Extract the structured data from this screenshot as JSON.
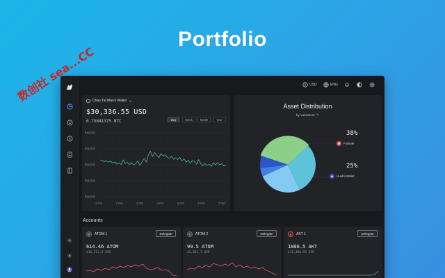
{
  "hero": {
    "title": "Portfolio"
  },
  "watermark": {
    "text": "数创社 sea...CC"
  },
  "topbar": {
    "currency": "USD",
    "language": "ENG"
  },
  "wallet": {
    "name": "Chan Tai Man's Wallet",
    "balance_usd": "$30,336.55 USD",
    "balance_btc": "0.75841375 BTC",
    "ranges": [
      "Day",
      "Week",
      "Month",
      "Year"
    ],
    "active_range": "Day"
  },
  "chart_data": {
    "type": "line",
    "y_ticks": [
      "$40,000",
      "$35,000",
      "$30,000",
      "$25,000",
      "$20,000"
    ],
    "ylim": [
      20000,
      40000
    ],
    "x_ticks": [
      "1 Oct",
      "2 Oct",
      "3 Oct",
      "4 Oct",
      "5 Oct",
      "6 Oct",
      "7 Oct"
    ],
    "series": [
      {
        "values": [
          31500,
          31300,
          31000,
          31200,
          30800,
          31100,
          30500,
          30900,
          30200,
          30600,
          30100,
          31500,
          30400,
          30800,
          30000,
          30600,
          29900,
          30400,
          31200,
          29800,
          30900,
          32000,
          30800,
          33000,
          34200,
          32500,
          33800,
          33000,
          32200,
          33500,
          32700,
          33100,
          32300,
          32000,
          32600,
          31700,
          32200,
          31600,
          32300,
          31200,
          31800,
          30800,
          31400,
          30500,
          31300,
          31000,
          30200,
          31600,
          30300,
          29600,
          30400,
          29700,
          30200,
          29500,
          30600,
          29900,
          30700,
          30000,
          30300,
          29600,
          29800
        ]
      }
    ]
  },
  "distribution": {
    "title": "Asset Distribution",
    "filter": "by validators",
    "items": [
      {
        "percent": "38%",
        "name": "Forbole",
        "color": "#e0564f"
      },
      {
        "percent": "25%",
        "name": "Huobi Wallet",
        "color": "#3a5bd9"
      }
    ],
    "slices": [
      {
        "value": 33,
        "color": "#8bcf88"
      },
      {
        "value": 30,
        "color": "#5ec3d8"
      },
      {
        "value": 25,
        "color": "#86c9f3"
      },
      {
        "value": 5,
        "color": "#3f80e6"
      },
      {
        "value": 7,
        "color": "#2b55c9"
      }
    ]
  },
  "accounts": {
    "title": "Accounts",
    "delegate_label": "Delegate",
    "items": [
      {
        "name": "ATOM 1",
        "amount": "614.46 ATOM",
        "usd": "$18,313.9 USD",
        "spark": [
          24,
          23,
          25,
          21,
          23,
          20,
          22,
          18,
          20,
          17,
          19,
          16,
          18,
          15,
          17,
          14,
          20,
          22,
          21,
          19,
          23,
          22,
          24,
          30,
          31
        ]
      },
      {
        "name": "ATOM 2",
        "amount": "99.5 ATOM",
        "usd": "$2,841.7 USD",
        "spark": [
          22,
          20,
          21,
          17,
          19,
          16,
          18,
          13,
          15,
          17,
          14,
          16,
          12,
          18,
          15,
          19,
          17,
          20,
          18,
          21,
          19,
          23,
          25,
          28,
          30
        ]
      },
      {
        "name": "AKT 1",
        "amount": "1806.5 AKT",
        "usd": "$11,300.95 USD",
        "spark": [
          30,
          30,
          30,
          30,
          30,
          30,
          30,
          30,
          30,
          30,
          30,
          30,
          30,
          30,
          30,
          30,
          30,
          30,
          30,
          30,
          30,
          30,
          30,
          29,
          24
        ]
      }
    ]
  }
}
